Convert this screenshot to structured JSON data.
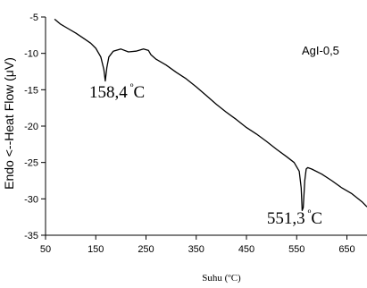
{
  "chart_data": {
    "type": "line",
    "xlabel": "Suhu (ºC)",
    "ylabel": "Endo <--Heat Flow (μV)",
    "xlim": [
      50,
      690
    ],
    "ylim": [
      -35,
      -5
    ],
    "x_ticks": [
      "50",
      "150",
      "250",
      "350",
      "450",
      "550",
      "650"
    ],
    "y_ticks": [
      "-5",
      "-10",
      "-15",
      "-20",
      "-25",
      "-30",
      "-35"
    ],
    "grid": false,
    "series": [
      {
        "name": "AgI-0,5",
        "x": [
          68,
          80,
          95,
          110,
          125,
          140,
          150,
          160,
          166,
          169,
          172,
          176,
          185,
          200,
          215,
          230,
          245,
          255,
          260,
          270,
          290,
          310,
          330,
          350,
          370,
          390,
          410,
          430,
          450,
          470,
          490,
          510,
          530,
          545,
          555,
          559,
          561,
          563,
          566,
          569,
          572,
          580,
          600,
          620,
          640,
          660,
          680,
          690
        ],
        "y": [
          -5.3,
          -6.0,
          -6.6,
          -7.2,
          -7.9,
          -8.6,
          -9.3,
          -10.5,
          -12.2,
          -13.8,
          -12.0,
          -10.5,
          -9.7,
          -9.4,
          -9.8,
          -9.7,
          -9.4,
          -9.6,
          -10.2,
          -10.8,
          -11.6,
          -12.6,
          -13.5,
          -14.6,
          -15.8,
          -17.0,
          -18.1,
          -19.1,
          -20.2,
          -21.1,
          -22.1,
          -23.2,
          -24.2,
          -25.0,
          -26.2,
          -28.5,
          -31.6,
          -31.2,
          -27.5,
          -25.9,
          -25.7,
          -25.9,
          -26.6,
          -27.5,
          -28.5,
          -29.3,
          -30.4,
          -31.1
        ]
      }
    ],
    "annotations": [
      {
        "value": "158,4",
        "unit_base": " º",
        "unit": "C"
      },
      {
        "value": "551,3",
        "unit_base": " º",
        "unit": "C"
      }
    ]
  }
}
